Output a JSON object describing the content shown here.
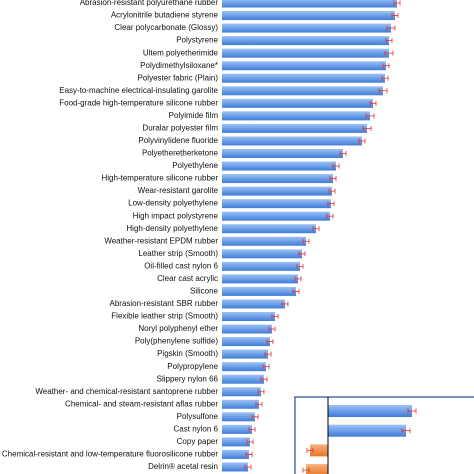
{
  "chart_data": [
    {
      "type": "hbar",
      "color": "#4a88e0",
      "categories": [
        "Abrasion-resistant polyurethane rubber",
        "Acrylonitrile butadiene styrene",
        "Clear polycarbonate (Glossy)",
        "Polystyrene",
        "Ultem polyetherimide",
        "Polydimethylsiloxane*",
        "Polyester fabric (Plain)",
        "Easy-to-machine electrical-insulating garolite",
        "Food-grade high-temperature silicone rubber",
        "Polyimide film",
        "Duralar polyester film",
        "Polyvinylidene fluoride",
        "Polyetheretherketone",
        "Polyethylene",
        "High-temperature silicone rubber",
        "Wear-resistant garolite",
        "Low-density polyethylene",
        "High impact polystyrene",
        "High-density polyethylene",
        "Weather-resistant EPDM rubber",
        "Leather strip (Smooth)",
        "Oil-filled cast nylon 6",
        "Clear cast acrylic",
        "Silicone",
        "Abrasion-resistant SBR rubber",
        "Flexible leather strip (Smooth)",
        "Noryl polyphenyl ether",
        "Poly(phenylene sulfide)",
        "Pigskin (Smooth)",
        "Polypropylene",
        "Slippery nylon 66",
        "Weather- and chemical-resistant santoprene rubber",
        "Chemical- and steam-resistant aflas rubber",
        "Polysulfone",
        "Cast nylon 6",
        "Copy paper",
        "Chemical-resistant and low-temperature fluorosilicone rubber",
        "Delrin® acetal resin"
      ],
      "values": [
        175,
        173,
        169,
        167,
        167,
        164,
        163,
        161,
        151,
        148,
        145,
        140,
        121,
        114,
        111,
        110,
        109,
        108,
        94,
        84,
        80,
        78,
        76,
        74,
        63,
        53,
        50,
        48,
        46,
        44,
        42,
        39,
        37,
        33,
        30,
        28,
        27,
        26
      ],
      "errors": [
        3,
        3,
        4,
        3,
        4,
        3,
        3,
        4,
        3,
        4,
        4,
        3,
        3,
        3,
        3,
        3,
        3,
        3,
        3,
        3,
        3,
        3,
        3,
        3,
        3,
        3,
        3,
        3,
        3,
        3,
        3,
        3,
        3,
        3,
        3,
        3,
        3,
        3
      ],
      "xlim": [
        0,
        252
      ]
    },
    {
      "type": "hbar-inset",
      "values": [
        84,
        78,
        -18,
        -22
      ],
      "errors": [
        4,
        4,
        3,
        3
      ],
      "colors": [
        "#4a88e0",
        "#4a88e0",
        "#f08a3c",
        "#f08a3c"
      ],
      "xlim": [
        -33,
        146
      ]
    }
  ]
}
